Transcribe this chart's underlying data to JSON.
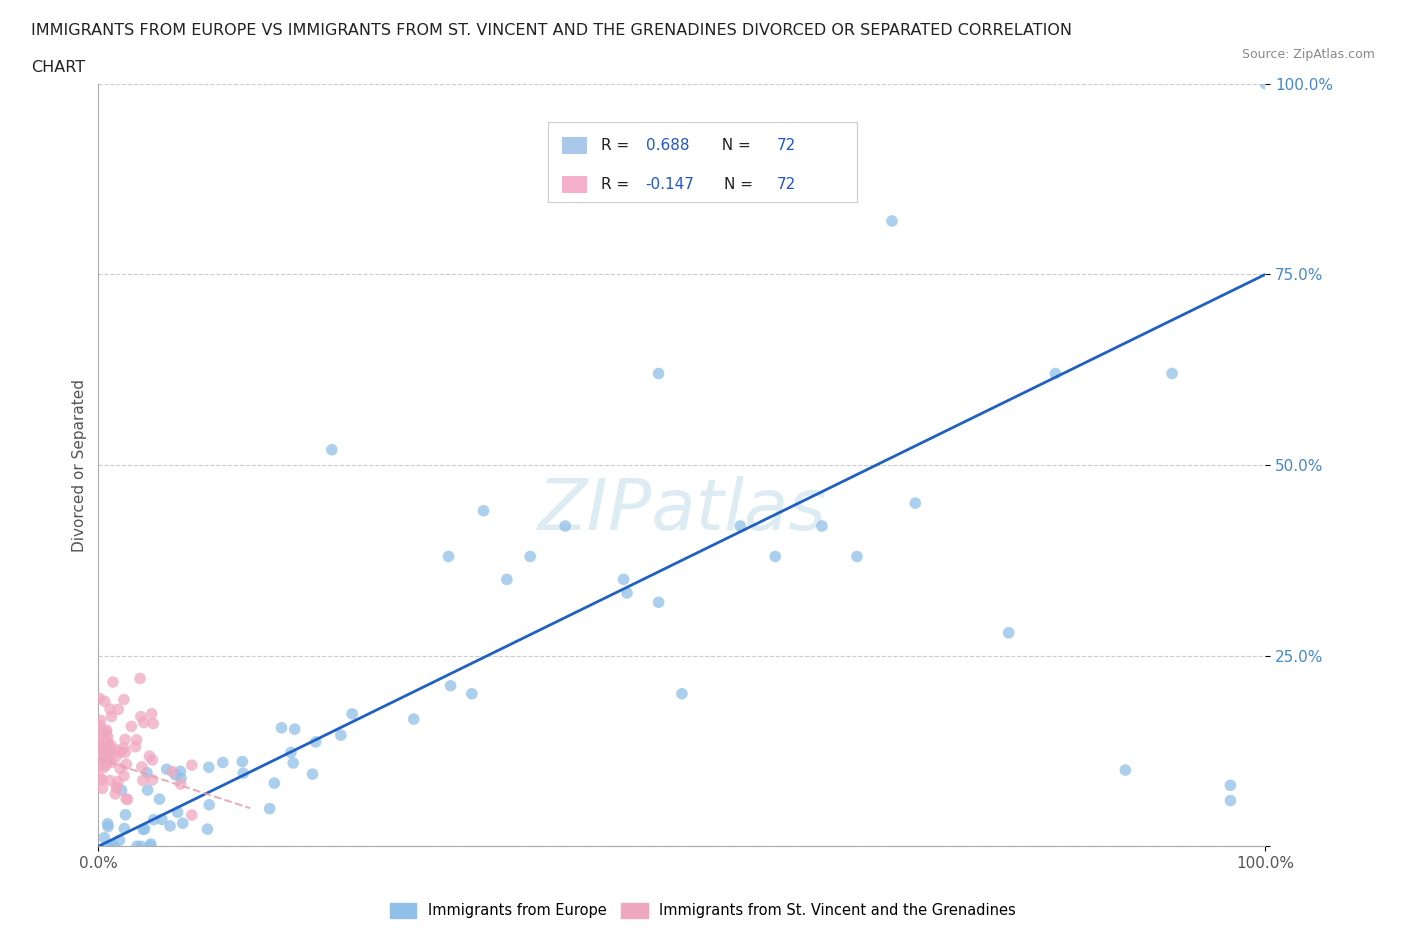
{
  "title_line1": "IMMIGRANTS FROM EUROPE VS IMMIGRANTS FROM ST. VINCENT AND THE GRENADINES DIVORCED OR SEPARATED CORRELATION",
  "title_line2": "CHART",
  "source_text": "Source: ZipAtlas.com",
  "ylabel": "Divorced or Separated",
  "x_tick_left": "0.0%",
  "x_tick_right": "100.0%",
  "y_ticks": [
    0.0,
    0.25,
    0.5,
    0.75,
    1.0
  ],
  "y_tick_labels": [
    "",
    "25.0%",
    "50.0%",
    "75.0%",
    "100.0%"
  ],
  "legend_entries": [
    {
      "label": "Immigrants from Europe",
      "color": "#aac8ea",
      "r_text": "R = ",
      "r_val": "0.688",
      "n_text": "N = ",
      "n_val": "72"
    },
    {
      "label": "Immigrants from St. Vincent and the Grenadines",
      "color": "#f4b0c8",
      "r_text": "R = ",
      "r_val": "-0.147",
      "n_text": "N = ",
      "n_val": "72"
    }
  ],
  "watermark_text": "ZIPatlas",
  "blue_line_color": "#2060c0",
  "pink_line_color": "#e8a0b0",
  "blue_dot_color": "#90c0e8",
  "pink_dot_color": "#f0a8c0",
  "grid_color": "#cccccc",
  "background_color": "#ffffff",
  "title_color": "#222222",
  "source_color": "#888888",
  "tick_color_right": "#4488cc",
  "tick_color_bottom": "#555555",
  "title_fontsize": 11.5,
  "source_fontsize": 9,
  "ylabel_fontsize": 11,
  "tick_fontsize": 11
}
